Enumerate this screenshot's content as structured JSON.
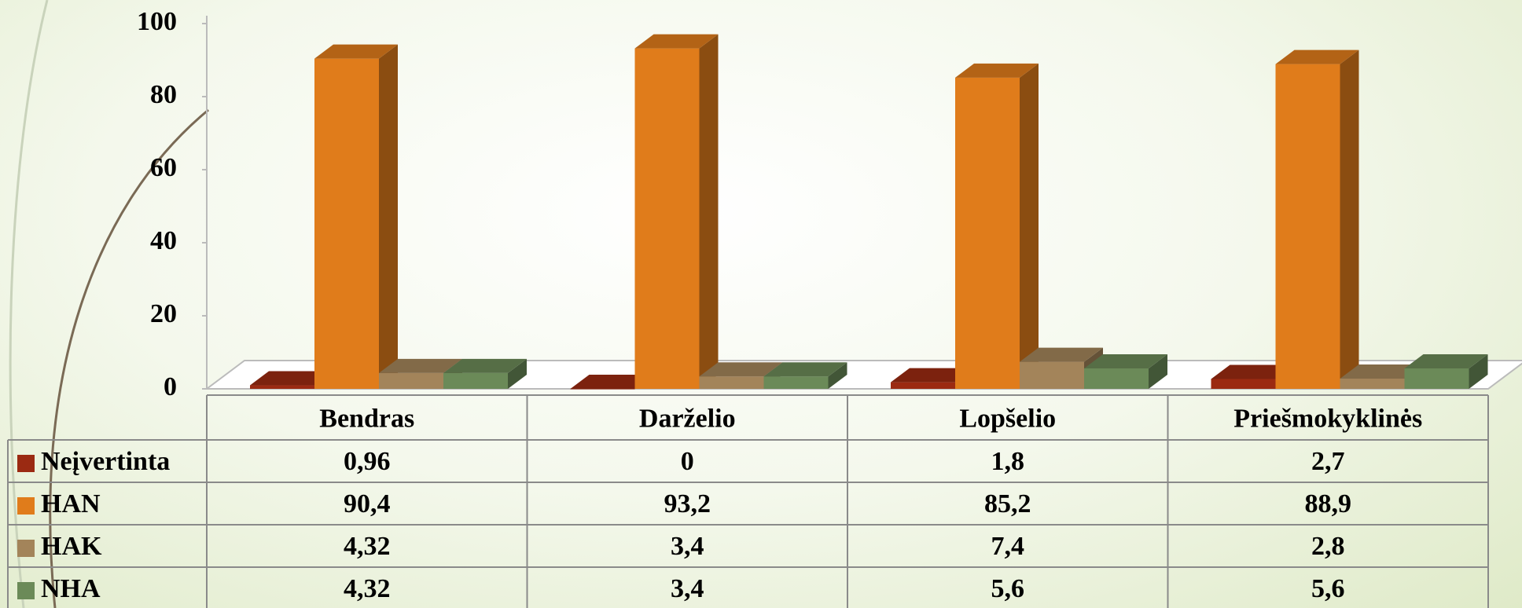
{
  "chart_data": {
    "type": "bar3d",
    "categories": [
      "Bendras",
      "Darželio",
      "Lopšelio",
      "Priešmokyklinės"
    ],
    "series": [
      {
        "name": "Neįvertinta",
        "color": "#9b2a12",
        "values": [
          0.96,
          0,
          1.8,
          2.7
        ],
        "value_labels": [
          "0,96",
          "0",
          "1,8",
          "2,7"
        ]
      },
      {
        "name": "HAN",
        "color": "#e07c1b",
        "values": [
          90.4,
          93.2,
          85.2,
          88.9
        ],
        "value_labels": [
          "90,4",
          "93,2",
          "85,2",
          "88,9"
        ]
      },
      {
        "name": "HAK",
        "color": "#a3845a",
        "values": [
          4.32,
          3.4,
          7.4,
          2.8
        ],
        "value_labels": [
          "4,32",
          "3,4",
          "7,4",
          "2,8"
        ]
      },
      {
        "name": "NHA",
        "color": "#6b8a58",
        "values": [
          4.32,
          3.4,
          5.6,
          5.6
        ],
        "value_labels": [
          "4,32",
          "3,4",
          "5,6",
          "5,6"
        ]
      }
    ],
    "ylim": [
      0,
      100
    ],
    "yticks": [
      0,
      20,
      40,
      60,
      80,
      100
    ]
  }
}
